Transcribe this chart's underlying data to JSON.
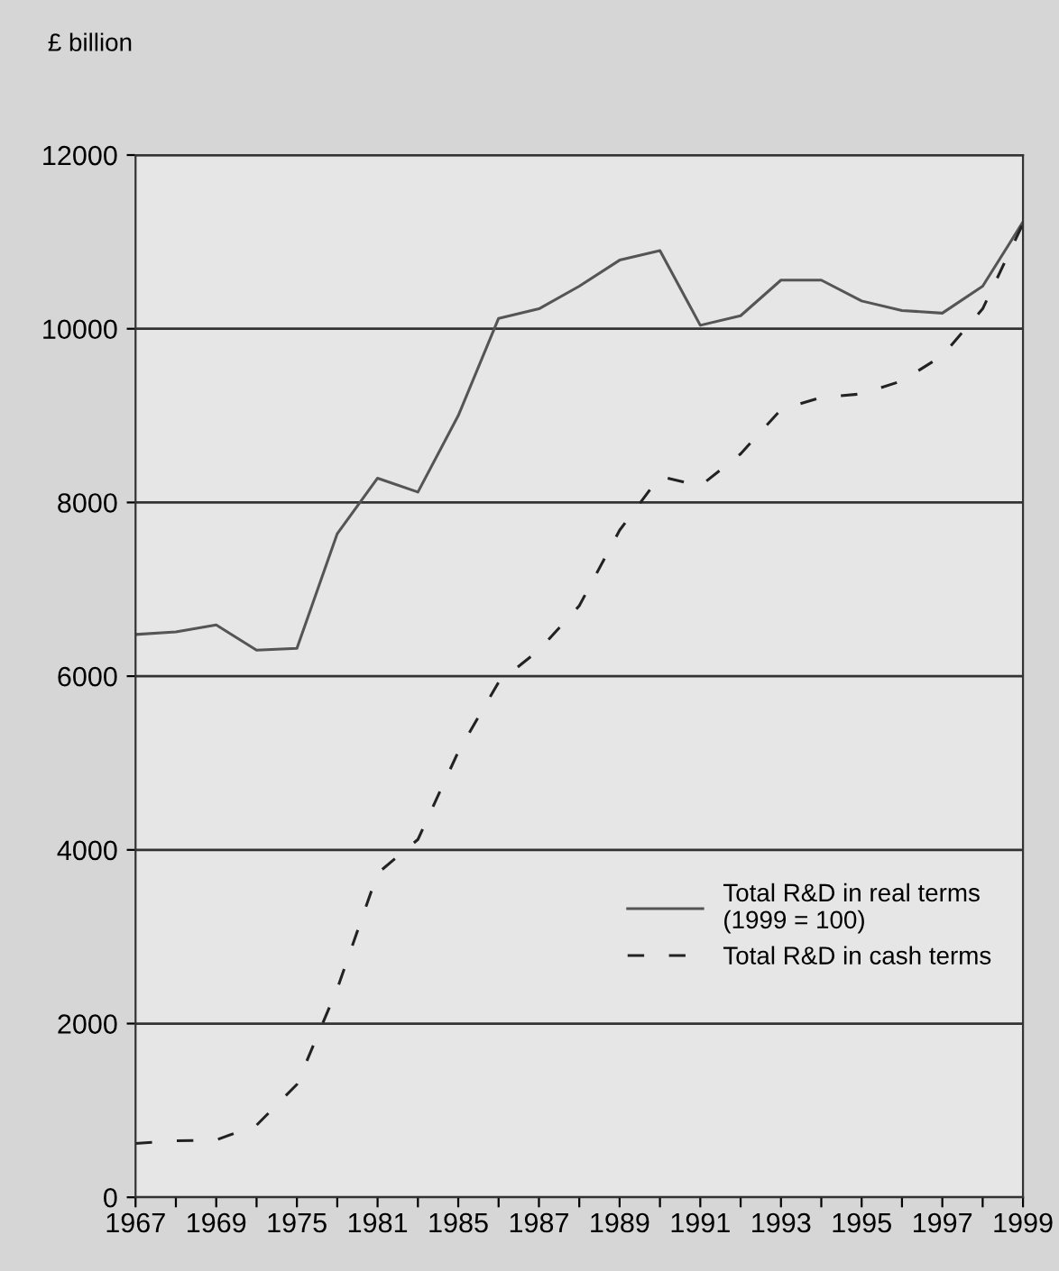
{
  "chart_data": {
    "type": "line",
    "ylabel": "£ billion",
    "categories": [
      "1967",
      null,
      "1969",
      null,
      "1975",
      null,
      "1981",
      null,
      "1985",
      null,
      "1987",
      null,
      "1989",
      null,
      "1991",
      null,
      "1993",
      null,
      "1995",
      null,
      "1997",
      null,
      "1999"
    ],
    "series": [
      {
        "name": "Total R&D in real terms\n(1999 = 100)",
        "color": "#555555",
        "line_style": "solid",
        "values": [
          6480,
          6510,
          6590,
          6300,
          6320,
          7640,
          8280,
          8120,
          9000,
          10120,
          10230,
          10490,
          10790,
          10900,
          10040,
          10150,
          10560,
          10560,
          10320,
          10210,
          10180,
          10490,
          11230
        ]
      },
      {
        "name": "Total R&D in cash terms",
        "color": "#222222",
        "line_style": "dashed",
        "values": [
          620,
          650,
          660,
          830,
          1300,
          2400,
          3730,
          4120,
          5130,
          5930,
          6300,
          6810,
          7680,
          8300,
          8190,
          8560,
          9070,
          9210,
          9250,
          9400,
          9690,
          10230,
          11210
        ]
      }
    ],
    "ylim": [
      0,
      12000
    ],
    "yticks": [
      0,
      2000,
      4000,
      6000,
      8000,
      10000,
      12000
    ],
    "grid": "y",
    "legend": "right",
    "marker": "none"
  }
}
